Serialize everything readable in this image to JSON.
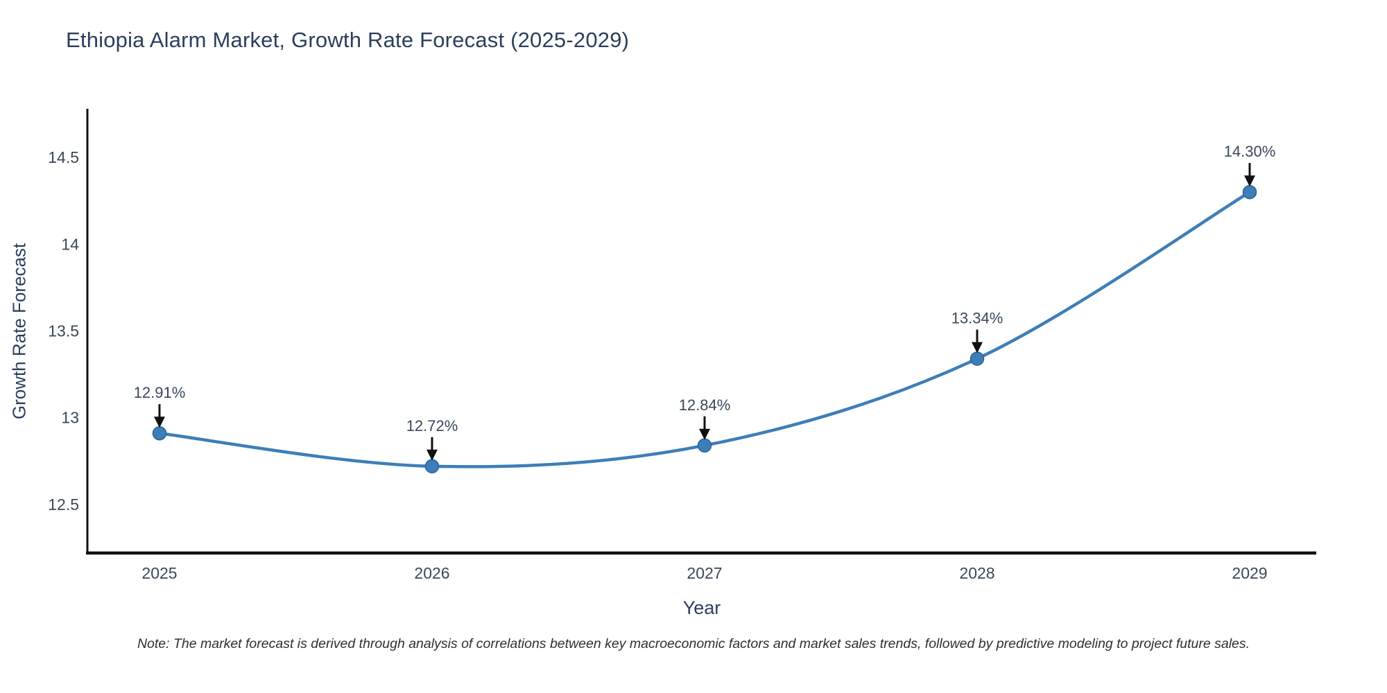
{
  "title": "Ethiopia Alarm Market, Growth Rate Forecast (2025-2029)",
  "note": "Note: The market forecast is derived through analysis of correlations between key macroeconomic factors and market sales trends, followed by predictive modeling to project future sales.",
  "chart_data": {
    "type": "line",
    "title": "Ethiopia Alarm Market, Growth Rate Forecast (2025-2029)",
    "categories": [
      "2025",
      "2026",
      "2027",
      "2028",
      "2029"
    ],
    "values": [
      12.91,
      12.72,
      12.84,
      13.34,
      14.3
    ],
    "point_labels": [
      "12.91%",
      "12.72%",
      "12.84%",
      "13.34%",
      "14.30%"
    ],
    "xlabel": "Year",
    "ylabel": "Growth Rate Forecast",
    "yticks": [
      12.5,
      13,
      13.5,
      14,
      14.5
    ],
    "ytick_labels": [
      "12.5",
      "13",
      "13.5",
      "14",
      "14.5"
    ],
    "ylim": [
      12.22,
      14.78
    ],
    "grid": false,
    "legend_position": "none",
    "smooth": true,
    "markers": true,
    "annotation_style": "label-with-down-arrow"
  },
  "colors": {
    "background": "#ffffff",
    "line": "#3d7eb8",
    "marker_fill": "#3d7eb8",
    "marker_edge": "#2a6396",
    "axis": "#111111",
    "arrow": "#111111",
    "title_text": "#2c3e5c",
    "tick_text": "#3b4857",
    "annotation_text": "#39465a",
    "note_text": "#2f2f2f"
  }
}
